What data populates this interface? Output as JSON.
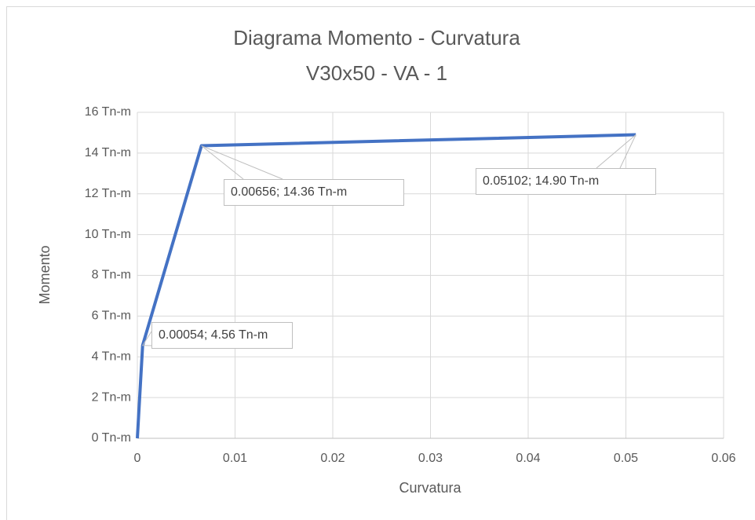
{
  "chart_data": {
    "type": "line",
    "title": "Diagrama Momento - Curvatura",
    "subtitle": "V30x50 - VA - 1",
    "x_label": "Curvatura",
    "y_label": "Momento",
    "x": [
      0,
      0.00054,
      0.00656,
      0.05102
    ],
    "values": [
      0,
      4.56,
      14.36,
      14.9
    ],
    "value_labels": [
      null,
      "0.00054; 4.56 Tn-m",
      "0.00656; 14.36 Tn-m",
      "0.05102; 14.90 Tn-m"
    ],
    "color": "#4472c4",
    "xlim": [
      0,
      0.06
    ],
    "xticks": [
      0,
      0.01,
      0.02,
      0.03,
      0.04,
      0.05,
      0.06
    ],
    "ylim": [
      0,
      16
    ],
    "yticks": [
      {
        "value": 0,
        "label": "0 Tn-m"
      },
      {
        "value": 2,
        "label": "2 Tn-m"
      },
      {
        "value": 4,
        "label": "4 Tn-m"
      },
      {
        "value": 6,
        "label": "6 Tn-m"
      },
      {
        "value": 8,
        "label": "8 Tn-m"
      },
      {
        "value": 10,
        "label": "10 Tn-m"
      },
      {
        "value": 12,
        "label": "12 Tn-m"
      },
      {
        "value": 14,
        "label": "14 Tn-m"
      },
      {
        "value": 16,
        "label": "16 Tn-m"
      }
    ],
    "grid": true
  }
}
